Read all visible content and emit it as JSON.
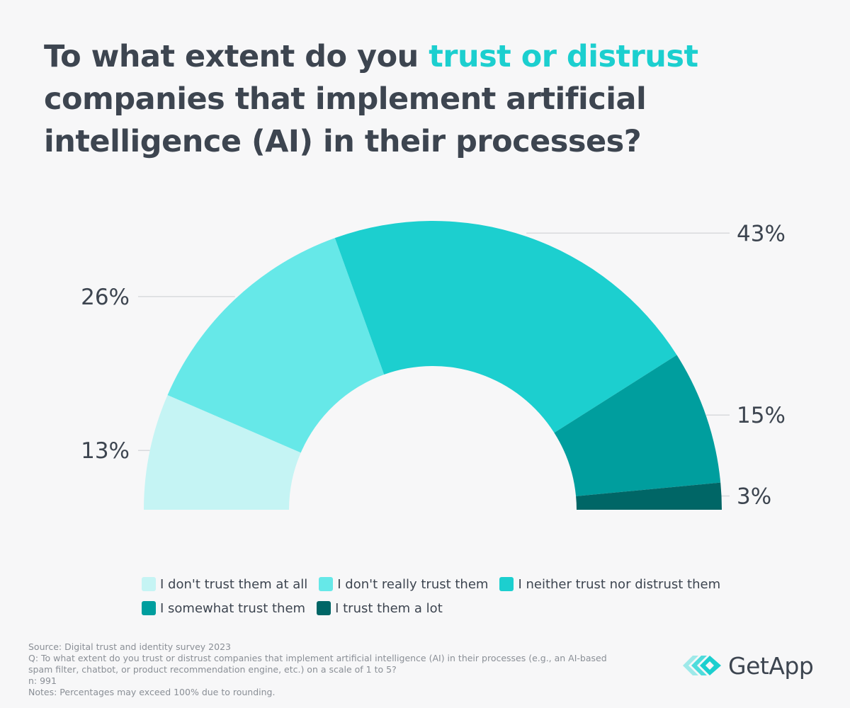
{
  "title": {
    "part1": "To what extent do you ",
    "highlight": "trust or distrust",
    "part2": " companies that implement artificial intelligence (AI) in their processes?"
  },
  "chart_data": {
    "type": "pie",
    "subtype": "semi-donut",
    "categories": [
      "I don't trust them at all",
      "I don't really trust them",
      "I neither trust nor distrust them",
      "I somewhat trust them",
      "I trust them a lot"
    ],
    "values": [
      13,
      26,
      43,
      15,
      3
    ],
    "labels": [
      "13%",
      "26%",
      "43%",
      "15%",
      "3%"
    ],
    "colors": [
      "#c5f4f4",
      "#66e8e8",
      "#1ccfcf",
      "#009e9e",
      "#006666"
    ],
    "legend_position": "bottom"
  },
  "footer": {
    "source": "Source: Digital trust and identity survey 2023",
    "question": "Q: To what extent do you trust or distrust companies that implement artificial intelligence (AI) in their processes (e.g., an AI-based spam filter, chatbot, or product recommendation engine, etc.) on a scale of 1 to 5?",
    "n": "n: 991",
    "notes": "Notes: Percentages may exceed 100% due to rounding."
  },
  "logo": {
    "text": "GetApp",
    "icon": "getapp-logo-icon"
  }
}
